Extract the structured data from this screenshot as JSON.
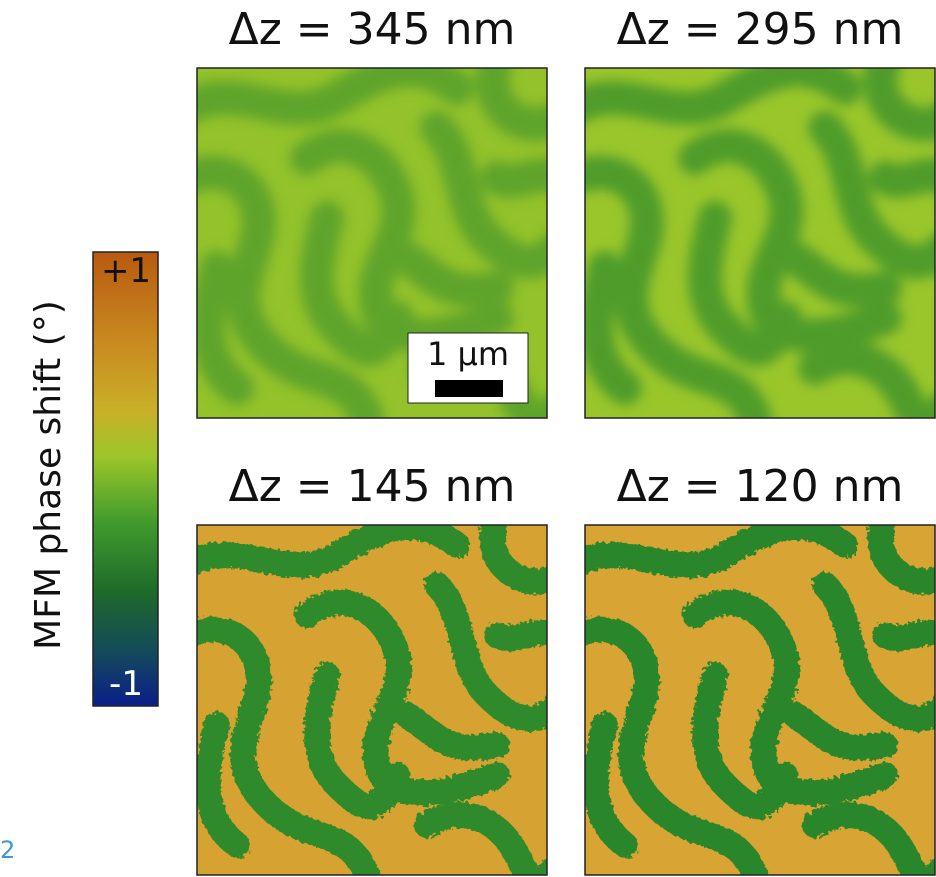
{
  "panels": [
    {
      "title": "Δz = 345 nm"
    },
    {
      "title": "Δz = 295 nm"
    },
    {
      "title": "Δz = 145 nm"
    },
    {
      "title": "Δz = 120 nm"
    }
  ],
  "colorbar": {
    "label": "MFM phase shift (°)",
    "max_label": "+1",
    "min_label": "-1"
  },
  "scale_bar": {
    "label": "1 µm"
  },
  "figure_number": "2"
}
